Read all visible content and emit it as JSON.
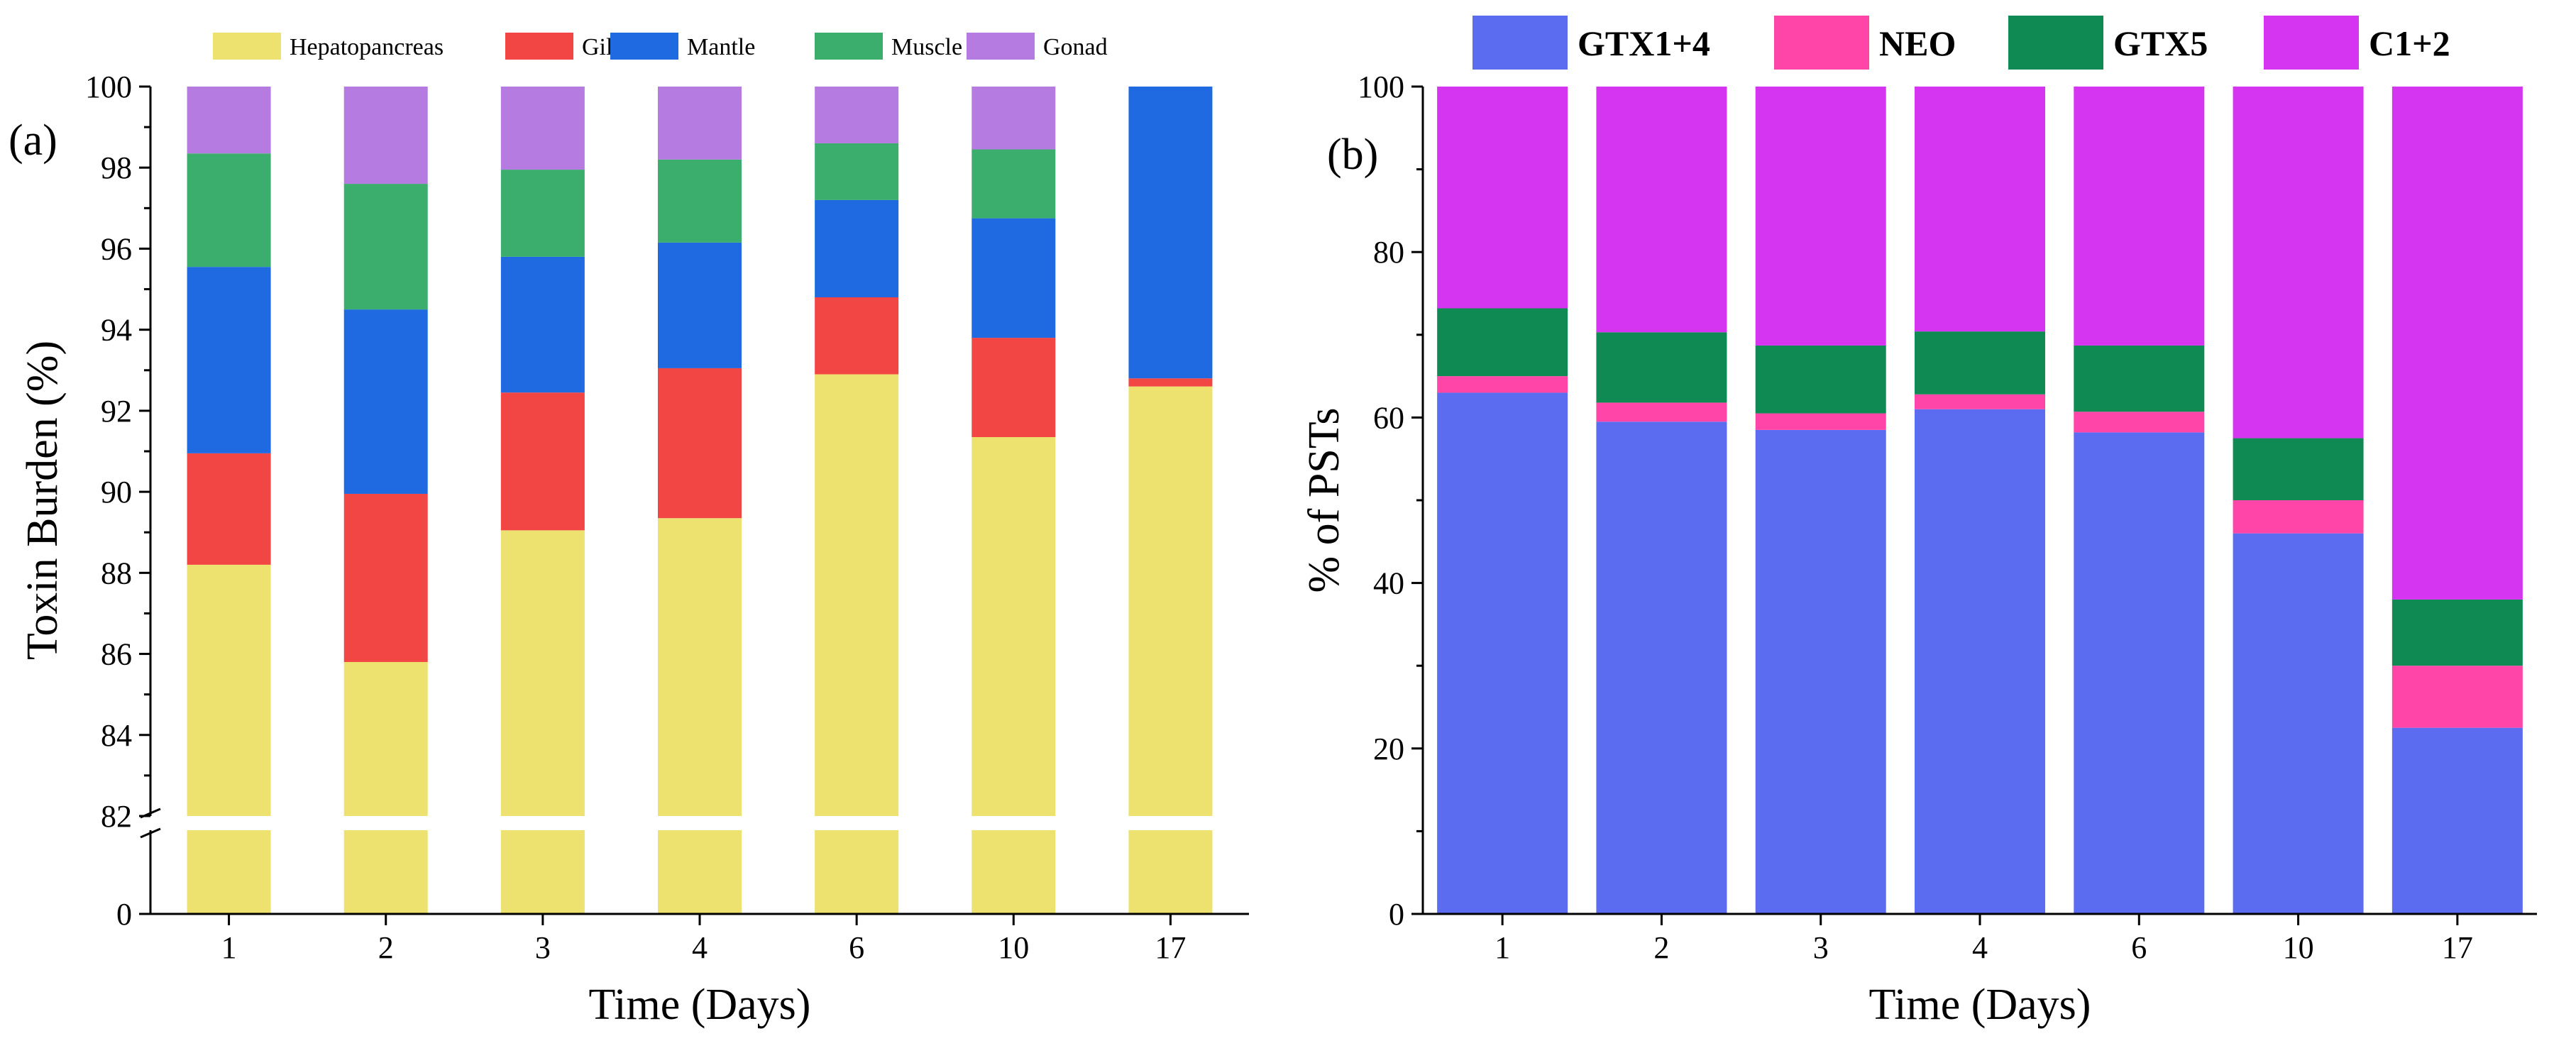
{
  "chart_data": [
    {
      "panel": "(a)",
      "type": "bar",
      "stacked": true,
      "broken_axis": true,
      "categories": [
        "1",
        "2",
        "3",
        "4",
        "6",
        "10",
        "17"
      ],
      "series": [
        {
          "name": "Hepatopancreas",
          "color": "#EDE170",
          "values": [
            88.2,
            85.8,
            89.05,
            89.35,
            92.9,
            91.35,
            92.6
          ]
        },
        {
          "name": "Gill",
          "color": "#F24645",
          "values": [
            2.75,
            4.15,
            3.4,
            3.7,
            1.9,
            2.45,
            0.2
          ]
        },
        {
          "name": "Mantle",
          "color": "#1F6AE0",
          "values": [
            4.6,
            4.55,
            3.35,
            3.1,
            2.4,
            2.95,
            7.2
          ]
        },
        {
          "name": "Muscle",
          "color": "#3BAE6E",
          "values": [
            2.8,
            3.1,
            2.15,
            2.05,
            1.4,
            1.7,
            0
          ]
        },
        {
          "name": "Gonad",
          "color": "#B57BE0",
          "values": [
            1.65,
            2.4,
            2.05,
            1.8,
            1.4,
            1.55,
            0
          ]
        }
      ],
      "ylabel": "Toxin Burden (%)",
      "xlabel": "Time (Days)",
      "ylim_upper": [
        82,
        100
      ],
      "ylim_lower": [
        0,
        82
      ],
      "yticks_upper": [
        "82",
        "84",
        "86",
        "88",
        "90",
        "92",
        "94",
        "96",
        "98",
        "100"
      ],
      "yticks_lower": [
        "0"
      ]
    },
    {
      "panel": "(b)",
      "type": "bar",
      "stacked": true,
      "categories": [
        "1",
        "2",
        "3",
        "4",
        "6",
        "10",
        "17"
      ],
      "series": [
        {
          "name": "GTX1+4",
          "color": "#5B6CF0",
          "values": [
            63,
            59.5,
            58.5,
            61,
            58.2,
            46,
            22.5
          ]
        },
        {
          "name": "NEO",
          "color": "#FF45A8",
          "values": [
            2,
            2.3,
            2,
            1.8,
            2.5,
            4,
            7.5
          ]
        },
        {
          "name": "GTX5",
          "color": "#0E8A52",
          "values": [
            8.2,
            8.5,
            8.2,
            7.6,
            8,
            7.5,
            8
          ]
        },
        {
          "name": "C1+2",
          "color": "#D534F0",
          "values": [
            26.8,
            29.7,
            31.3,
            29.6,
            31.3,
            42.5,
            62
          ]
        }
      ],
      "ylabel": "% of PSTs",
      "xlabel": "Time (Days)",
      "ylim": [
        0,
        100
      ],
      "yticks": [
        "0",
        "20",
        "40",
        "60",
        "80",
        "100"
      ]
    }
  ]
}
